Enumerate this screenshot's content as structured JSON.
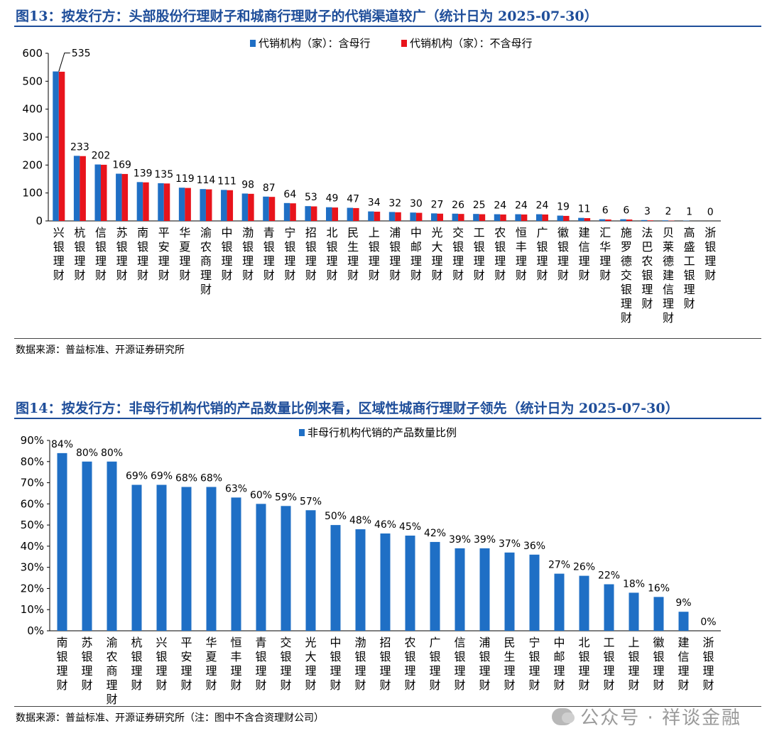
{
  "figure13": {
    "title": "图13：按发行方：头部股份行理财子和城商行理财子的代销渠道较广（统计日为 2025-07-30）",
    "source": "数据来源：普益标准、开源证券研究所"
  },
  "figure14": {
    "title": "图14：按发行方：非母行机构代销的产品数量比例来看，区域性城商行理财子领先（统计日为 2025-07-30）",
    "source": "数据来源：普益标准、开源证券研究所（注：图中不含合资理财公司）"
  },
  "watermark": "公众号 · 祥谈金融",
  "chart_data": [
    {
      "type": "bar",
      "categories": [
        "兴银理财",
        "杭银理财",
        "信银理财",
        "苏银理财",
        "南银理财",
        "平安理财",
        "华夏理财",
        "渝农商理财",
        "中银理财",
        "渤银理财",
        "青银理财",
        "宁银理财",
        "招银理财",
        "北银理财",
        "民生理财",
        "上银理财",
        "浦银理财",
        "中邮理财",
        "光大理财",
        "交银理财",
        "工银理财",
        "农银理财",
        "恒丰理财",
        "广银理财",
        "徽银理财",
        "建信理财",
        "汇华理财",
        "施罗德交银理财",
        "法巴农银理财",
        "贝莱德建信理财",
        "高盛工银理财",
        "浙银理财"
      ],
      "series": [
        {
          "name": "代销机构（家）：含母行",
          "color": "#1f6fc5",
          "values": [
            535,
            233,
            202,
            169,
            139,
            135,
            119,
            114,
            111,
            98,
            87,
            64,
            53,
            49,
            47,
            34,
            32,
            30,
            27,
            26,
            25,
            24,
            24,
            24,
            19,
            11,
            6,
            6,
            3,
            2,
            1,
            0
          ]
        },
        {
          "name": "代销机构（家）：不含母行",
          "color": "#e8141c",
          "values": [
            534,
            232,
            201,
            168,
            138,
            134,
            118,
            113,
            110,
            97,
            86,
            63,
            52,
            48,
            46,
            33,
            31,
            29,
            26,
            25,
            24,
            23,
            23,
            23,
            18,
            10,
            5,
            5,
            2,
            1,
            0,
            0
          ]
        }
      ],
      "data_labels": [
        "535",
        "233",
        "202",
        "169",
        "139",
        "135",
        "119",
        "114",
        "111",
        "98",
        "87",
        "64",
        "53",
        "49",
        "47",
        "34",
        "32",
        "30",
        "27",
        "26",
        "25",
        "24",
        "24",
        "24",
        "19",
        "11",
        "6",
        "6",
        "3",
        "2",
        "1",
        "0"
      ],
      "yticks": [
        "0",
        "100",
        "200",
        "300",
        "400",
        "500",
        "600"
      ],
      "ylim": [
        0,
        600
      ],
      "legend": "top-center"
    },
    {
      "type": "bar",
      "categories": [
        "南银理财",
        "苏银理财",
        "渝农商理财",
        "杭银理财",
        "兴银理财",
        "平安理财",
        "华夏理财",
        "恒丰理财",
        "青银理财",
        "交银理财",
        "光大理财",
        "中银理财",
        "渤银理财",
        "招银理财",
        "农银理财",
        "广银理财",
        "信银理财",
        "浦银理财",
        "民生理财",
        "宁银理财",
        "中邮理财",
        "北银理财",
        "工银理财",
        "上银理财",
        "徽银理财",
        "建信理财",
        "浙银理财"
      ],
      "series": [
        {
          "name": "非母行机构代销的产品数量比例",
          "color": "#1f6fc5",
          "values": [
            84,
            80,
            80,
            69,
            69,
            68,
            68,
            63,
            60,
            59,
            57,
            50,
            48,
            46,
            45,
            42,
            39,
            39,
            37,
            36,
            27,
            26,
            22,
            18,
            16,
            9,
            0
          ]
        }
      ],
      "data_labels": [
        "84%",
        "80%",
        "80%",
        "69%",
        "69%",
        "68%",
        "68%",
        "63%",
        "60%",
        "59%",
        "57%",
        "50%",
        "48%",
        "46%",
        "45%",
        "42%",
        "39%",
        "39%",
        "37%",
        "36%",
        "27%",
        "26%",
        "22%",
        "18%",
        "16%",
        "9%",
        "0%"
      ],
      "yticks": [
        "0%",
        "10%",
        "20%",
        "30%",
        "40%",
        "50%",
        "60%",
        "70%",
        "80%",
        "90%"
      ],
      "ylim": [
        0,
        90
      ],
      "unit": "%",
      "legend": "top-center"
    }
  ]
}
